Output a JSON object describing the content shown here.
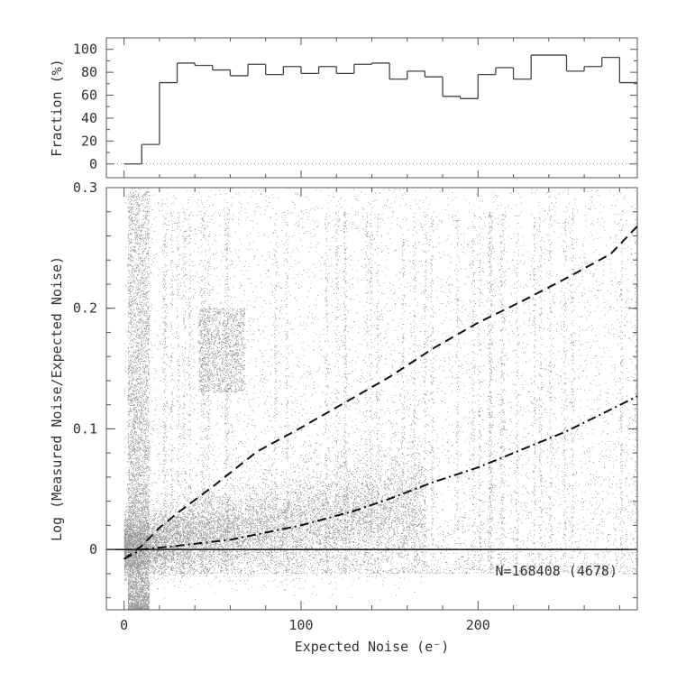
{
  "chart_data": [
    {
      "type": "histogram",
      "panel": "top",
      "ylabel": "Fraction (%)",
      "ylim": [
        -12,
        110
      ],
      "xlim": [
        -10,
        290
      ],
      "yticks": [
        0,
        20,
        40,
        60,
        80,
        100
      ],
      "reference_line": 0,
      "bin_width": 10,
      "bins": [
        {
          "x0": 0,
          "value": 0
        },
        {
          "x0": 10,
          "value": 17
        },
        {
          "x0": 20,
          "value": 71
        },
        {
          "x0": 30,
          "value": 88
        },
        {
          "x0": 40,
          "value": 86
        },
        {
          "x0": 50,
          "value": 82
        },
        {
          "x0": 60,
          "value": 77
        },
        {
          "x0": 70,
          "value": 87
        },
        {
          "x0": 80,
          "value": 78
        },
        {
          "x0": 90,
          "value": 85
        },
        {
          "x0": 100,
          "value": 79
        },
        {
          "x0": 110,
          "value": 85
        },
        {
          "x0": 120,
          "value": 79
        },
        {
          "x0": 130,
          "value": 87
        },
        {
          "x0": 140,
          "value": 88
        },
        {
          "x0": 150,
          "value": 74
        },
        {
          "x0": 160,
          "value": 81
        },
        {
          "x0": 170,
          "value": 76
        },
        {
          "x0": 180,
          "value": 59
        },
        {
          "x0": 190,
          "value": 57
        },
        {
          "x0": 200,
          "value": 78
        },
        {
          "x0": 210,
          "value": 84
        },
        {
          "x0": 220,
          "value": 74
        },
        {
          "x0": 230,
          "value": 95
        },
        {
          "x0": 240,
          "value": 95
        },
        {
          "x0": 250,
          "value": 81
        },
        {
          "x0": 260,
          "value": 85
        },
        {
          "x0": 270,
          "value": 93
        },
        {
          "x0": 280,
          "value": 71
        }
      ]
    },
    {
      "type": "scatter",
      "panel": "bottom",
      "xlabel": "Expected Noise (e⁻)",
      "ylabel": "Log (Measured Noise/Expected Noise)",
      "xlim": [
        -10,
        290
      ],
      "ylim": [
        -0.05,
        0.3
      ],
      "xticks": [
        0,
        100,
        200
      ],
      "yticks": [
        0,
        0.1,
        0.2,
        0.3
      ],
      "ytick_labels": [
        "0",
        "0.1",
        "0.2",
        "0.3"
      ],
      "annotation": "N=168408 (4678)",
      "reference_line": 0,
      "curves": [
        {
          "style": "dashed",
          "x": [
            0,
            10,
            20,
            30,
            50,
            75,
            100,
            125,
            150,
            175,
            200,
            225,
            250,
            275,
            290
          ],
          "y": [
            -0.008,
            0.003,
            0.018,
            0.03,
            0.052,
            0.081,
            0.101,
            0.122,
            0.143,
            0.167,
            0.188,
            0.206,
            0.225,
            0.245,
            0.268
          ]
        },
        {
          "style": "dash-dot",
          "x": [
            0,
            10,
            30,
            60,
            100,
            130,
            150,
            175,
            200,
            225,
            250,
            275,
            290
          ],
          "y": [
            -0.008,
            0.0,
            0.003,
            0.008,
            0.02,
            0.032,
            0.042,
            0.056,
            0.068,
            0.083,
            0.098,
            0.116,
            0.127
          ]
        }
      ],
      "point_density": {
        "description_counts": "density samples (x in e-, y log ratio, relative weight)",
        "clusters": [
          {
            "x": [
              0,
              15
            ],
            "y": [
              -0.05,
              0.3
            ],
            "weight": 5
          },
          {
            "x": [
              15,
              140
            ],
            "y": [
              -0.02,
              0.06
            ],
            "weight": 10
          },
          {
            "x": [
              40,
              70
            ],
            "y": [
              0.12,
              0.2
            ],
            "weight": 1.2
          },
          {
            "x": [
              0,
              290
            ],
            "y": [
              -0.02,
              0.3
            ],
            "weight": 3
          }
        ]
      }
    }
  ]
}
